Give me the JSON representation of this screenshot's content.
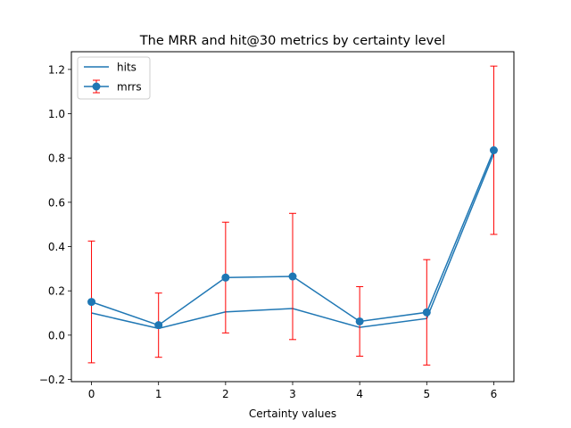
{
  "chart_data": {
    "type": "line",
    "title": "The MRR and hit@30 metrics by certainty level",
    "xlabel": "Certainty values",
    "ylabel": "",
    "x": [
      0,
      1,
      2,
      3,
      4,
      5,
      6
    ],
    "xlim": [
      -0.3,
      6.3
    ],
    "ylim": [
      -0.21,
      1.28
    ],
    "xticks": [
      "0",
      "1",
      "2",
      "3",
      "4",
      "5",
      "6"
    ],
    "yticks": [
      "−0.2",
      "0.0",
      "0.2",
      "0.4",
      "0.6",
      "0.8",
      "1.0",
      "1.2"
    ],
    "ytick_values": [
      -0.2,
      0.0,
      0.2,
      0.4,
      0.6,
      0.8,
      1.0,
      1.2
    ],
    "grid": false,
    "legend_position": "upper-left",
    "series": [
      {
        "name": "hits",
        "values": [
          0.1,
          0.03,
          0.105,
          0.12,
          0.035,
          0.075,
          0.82
        ],
        "color": "#1f77b4",
        "marker": "none"
      },
      {
        "name": "mrrs",
        "values": [
          0.15,
          0.045,
          0.26,
          0.265,
          0.062,
          0.103,
          0.835
        ],
        "color": "#1f77b4",
        "marker": "circle",
        "error_bars": [
          0.275,
          0.145,
          0.25,
          0.285,
          0.157,
          0.238,
          0.38
        ],
        "error_color": "#ff0000"
      }
    ]
  }
}
